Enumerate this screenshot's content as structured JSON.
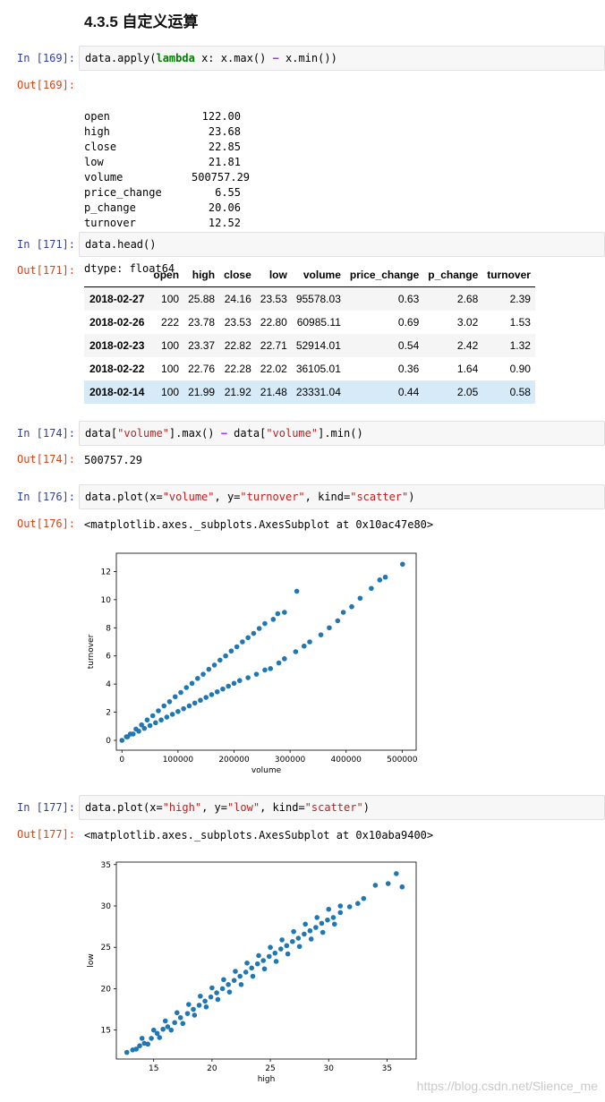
{
  "heading": "4.3.5 自定义运算",
  "cells": [
    {
      "in_label": "In  [169]:",
      "out_label": "Out[169]:"
    },
    {
      "in_label": "In  [171]:",
      "out_label": "Out[171]:"
    },
    {
      "in_label": "In  [174]:",
      "out_label": "Out[174]:"
    },
    {
      "in_label": "In  [176]:",
      "out_label": "Out[176]:"
    },
    {
      "in_label": "In  [177]:",
      "out_label": "Out[177]:"
    }
  ],
  "code": {
    "c169": {
      "p1": "data.apply(",
      "kw": "lambda",
      "p2": " x: x.max() ",
      "op": "−",
      "p3": " x.min())"
    },
    "c171": "data.head()",
    "c174": {
      "p1": "data[",
      "s1": "\"volume\"",
      "p2": "].max() ",
      "op": "−",
      "p3": " data[",
      "s2": "\"volume\"",
      "p4": "].min()"
    },
    "c176": {
      "p1": "data.plot(x=",
      "s1": "\"volume\"",
      "p2": ", y=",
      "s2": "\"turnover\"",
      "p3": ", kind=",
      "s3": "\"scatter\"",
      "p4": ")"
    },
    "c177": {
      "p1": "data.plot(x=",
      "s1": "\"high\"",
      "p2": ", y=",
      "s2": "\"low\"",
      "p3": ", kind=",
      "s3": "\"scatter\"",
      "p4": ")"
    }
  },
  "series_output": {
    "rows": [
      {
        "k": "open",
        "v": "122.00"
      },
      {
        "k": "high",
        "v": "23.68"
      },
      {
        "k": "close",
        "v": "22.85"
      },
      {
        "k": "low",
        "v": "21.81"
      },
      {
        "k": "volume",
        "v": "500757.29"
      },
      {
        "k": "price_change",
        "v": "6.55"
      },
      {
        "k": "p_change",
        "v": "20.06"
      },
      {
        "k": "turnover",
        "v": "12.52"
      }
    ],
    "dtype": "dtype: float64"
  },
  "dataframe": {
    "columns": [
      "",
      "open",
      "high",
      "close",
      "low",
      "volume",
      "price_change",
      "p_change",
      "turnover"
    ],
    "rows": [
      [
        "2018-02-27",
        "100",
        "25.88",
        "24.16",
        "23.53",
        "95578.03",
        "0.63",
        "2.68",
        "2.39"
      ],
      [
        "2018-02-26",
        "222",
        "23.78",
        "23.53",
        "22.80",
        "60985.11",
        "0.69",
        "3.02",
        "1.53"
      ],
      [
        "2018-02-23",
        "100",
        "23.37",
        "22.82",
        "22.71",
        "52914.01",
        "0.54",
        "2.42",
        "1.32"
      ],
      [
        "2018-02-22",
        "100",
        "22.76",
        "22.28",
        "22.02",
        "36105.01",
        "0.36",
        "1.64",
        "0.90"
      ],
      [
        "2018-02-14",
        "100",
        "21.99",
        "21.92",
        "21.48",
        "23331.04",
        "0.44",
        "2.05",
        "0.58"
      ]
    ]
  },
  "out174": "500757.29",
  "out176": "<matplotlib.axes._subplots.AxesSubplot at 0x10ac47e80>",
  "out177": "<matplotlib.axes._subplots.AxesSubplot at 0x10aba9400>",
  "watermark": "https://blog.csdn.net/Slience_me",
  "colors": {
    "marker": "#1f77b4",
    "in_prompt": "#303f9f",
    "out_prompt": "#d84315"
  },
  "chart_data": [
    {
      "type": "scatter",
      "title": "",
      "xlabel": "volume",
      "ylabel": "turnover",
      "xlim": [
        -10000,
        525000
      ],
      "ylim": [
        -0.7,
        13.3
      ],
      "xticks": [
        0,
        100000,
        200000,
        300000,
        400000,
        500000
      ],
      "yticks": [
        0,
        2,
        4,
        6,
        8,
        10,
        12
      ],
      "series": [
        {
          "values": [
            [
              0,
              0
            ],
            [
              8000,
              0.25
            ],
            [
              15000,
              0.45
            ],
            [
              25000,
              0.8
            ],
            [
              35000,
              1.1
            ],
            [
              45000,
              1.45
            ],
            [
              55000,
              1.75
            ],
            [
              65000,
              2.1
            ],
            [
              75000,
              2.45
            ],
            [
              85000,
              2.75
            ],
            [
              95000,
              3.1
            ],
            [
              105000,
              3.4
            ],
            [
              115000,
              3.75
            ],
            [
              125000,
              4.05
            ],
            [
              135000,
              4.4
            ],
            [
              145000,
              4.7
            ],
            [
              155000,
              5.05
            ],
            [
              165000,
              5.35
            ],
            [
              175000,
              5.7
            ],
            [
              185000,
              6.0
            ],
            [
              195000,
              6.35
            ],
            [
              205000,
              6.65
            ],
            [
              215000,
              7.0
            ],
            [
              225000,
              7.3
            ],
            [
              235000,
              7.6
            ],
            [
              245000,
              7.95
            ],
            [
              255000,
              8.3
            ],
            [
              270000,
              8.6
            ],
            [
              278000,
              9.0
            ],
            [
              290000,
              9.1
            ],
            [
              312000,
              10.6
            ]
          ]
        },
        {
          "values": [
            [
              10000,
              0.25
            ],
            [
              20000,
              0.45
            ],
            [
              30000,
              0.65
            ],
            [
              40000,
              0.85
            ],
            [
              50000,
              1.05
            ],
            [
              60000,
              1.25
            ],
            [
              70000,
              1.45
            ],
            [
              80000,
              1.65
            ],
            [
              90000,
              1.85
            ],
            [
              100000,
              2.05
            ],
            [
              110000,
              2.25
            ],
            [
              120000,
              2.45
            ],
            [
              130000,
              2.65
            ],
            [
              140000,
              2.85
            ],
            [
              150000,
              3.05
            ],
            [
              160000,
              3.25
            ],
            [
              170000,
              3.45
            ],
            [
              180000,
              3.65
            ],
            [
              190000,
              3.85
            ],
            [
              200000,
              4.05
            ],
            [
              210000,
              4.25
            ],
            [
              225000,
              4.45
            ],
            [
              240000,
              4.7
            ],
            [
              255000,
              5.0
            ],
            [
              265000,
              5.1
            ],
            [
              280000,
              5.5
            ],
            [
              290000,
              5.8
            ],
            [
              310000,
              6.3
            ],
            [
              325000,
              6.7
            ],
            [
              335000,
              7.0
            ],
            [
              355000,
              7.5
            ],
            [
              370000,
              8.0
            ],
            [
              385000,
              8.5
            ],
            [
              395000,
              9.1
            ],
            [
              410000,
              9.5
            ],
            [
              425000,
              10.1
            ],
            [
              445000,
              10.8
            ],
            [
              460000,
              11.4
            ],
            [
              470000,
              11.6
            ],
            [
              500757,
              12.52
            ]
          ]
        }
      ]
    },
    {
      "type": "scatter",
      "title": "",
      "xlabel": "high",
      "ylabel": "low",
      "xlim": [
        11.8,
        37.5
      ],
      "ylim": [
        11.5,
        35.3
      ],
      "xticks": [
        15,
        20,
        25,
        30,
        35
      ],
      "yticks": [
        15,
        20,
        25,
        30,
        35
      ],
      "series": [
        {
          "values": [
            [
              12.7,
              12.3
            ],
            [
              13.2,
              12.6
            ],
            [
              13.8,
              13.1
            ],
            [
              14.2,
              13.4
            ],
            [
              14.8,
              14.0
            ],
            [
              15.3,
              14.6
            ],
            [
              15.8,
              15.1
            ],
            [
              16.2,
              15.4
            ],
            [
              16.8,
              15.9
            ],
            [
              17.3,
              16.5
            ],
            [
              17.9,
              17.0
            ],
            [
              18.4,
              17.5
            ],
            [
              18.9,
              18.0
            ],
            [
              19.4,
              18.5
            ],
            [
              19.9,
              19.0
            ],
            [
              20.4,
              19.5
            ],
            [
              20.9,
              20.0
            ],
            [
              21.4,
              20.5
            ],
            [
              21.9,
              21.0
            ],
            [
              22.4,
              21.5
            ],
            [
              22.9,
              22.0
            ],
            [
              23.4,
              22.5
            ],
            [
              23.9,
              23.0
            ],
            [
              24.4,
              23.4
            ],
            [
              24.9,
              23.9
            ],
            [
              25.4,
              24.3
            ],
            [
              25.9,
              24.8
            ],
            [
              26.4,
              25.2
            ],
            [
              26.9,
              25.7
            ],
            [
              27.4,
              26.1
            ],
            [
              27.9,
              26.6
            ],
            [
              28.4,
              27.0
            ],
            [
              28.9,
              27.4
            ],
            [
              29.4,
              27.9
            ],
            [
              29.9,
              28.3
            ],
            [
              30.4,
              28.6
            ],
            [
              31.0,
              29.2
            ],
            [
              31.8,
              29.9
            ],
            [
              32.5,
              30.3
            ],
            [
              33.0,
              30.9
            ],
            [
              34.0,
              32.5
            ],
            [
              35.1,
              32.7
            ],
            [
              35.8,
              33.9
            ],
            [
              36.3,
              32.3
            ]
          ]
        },
        {
          "values": [
            [
              13.5,
              12.7
            ],
            [
              14.5,
              13.3
            ],
            [
              15.5,
              14.1
            ],
            [
              16.5,
              15.0
            ],
            [
              17.5,
              15.8
            ],
            [
              18.5,
              16.8
            ],
            [
              19.5,
              17.8
            ],
            [
              20.5,
              18.7
            ],
            [
              21.5,
              19.6
            ],
            [
              22.5,
              20.5
            ],
            [
              23.5,
              21.5
            ],
            [
              24.5,
              22.4
            ],
            [
              25.5,
              23.3
            ],
            [
              26.5,
              24.2
            ],
            [
              27.5,
              25.1
            ],
            [
              28.5,
              26.0
            ],
            [
              29.5,
              26.8
            ],
            [
              30.5,
              27.8
            ]
          ]
        },
        {
          "values": [
            [
              14.0,
              14.0
            ],
            [
              15.0,
              15.0
            ],
            [
              16.0,
              16.1
            ],
            [
              17.0,
              17.1
            ],
            [
              18.0,
              18.1
            ],
            [
              19.0,
              19.1
            ],
            [
              20.0,
              20.1
            ],
            [
              21.0,
              21.1
            ],
            [
              22.0,
              22.1
            ],
            [
              23.0,
              23.1
            ],
            [
              24.0,
              24.0
            ],
            [
              25.0,
              25.0
            ],
            [
              26.0,
              25.9
            ],
            [
              27.0,
              26.9
            ],
            [
              28.0,
              27.8
            ],
            [
              29.0,
              28.6
            ],
            [
              30.0,
              29.6
            ],
            [
              31.0,
              30.0
            ]
          ]
        }
      ]
    }
  ]
}
